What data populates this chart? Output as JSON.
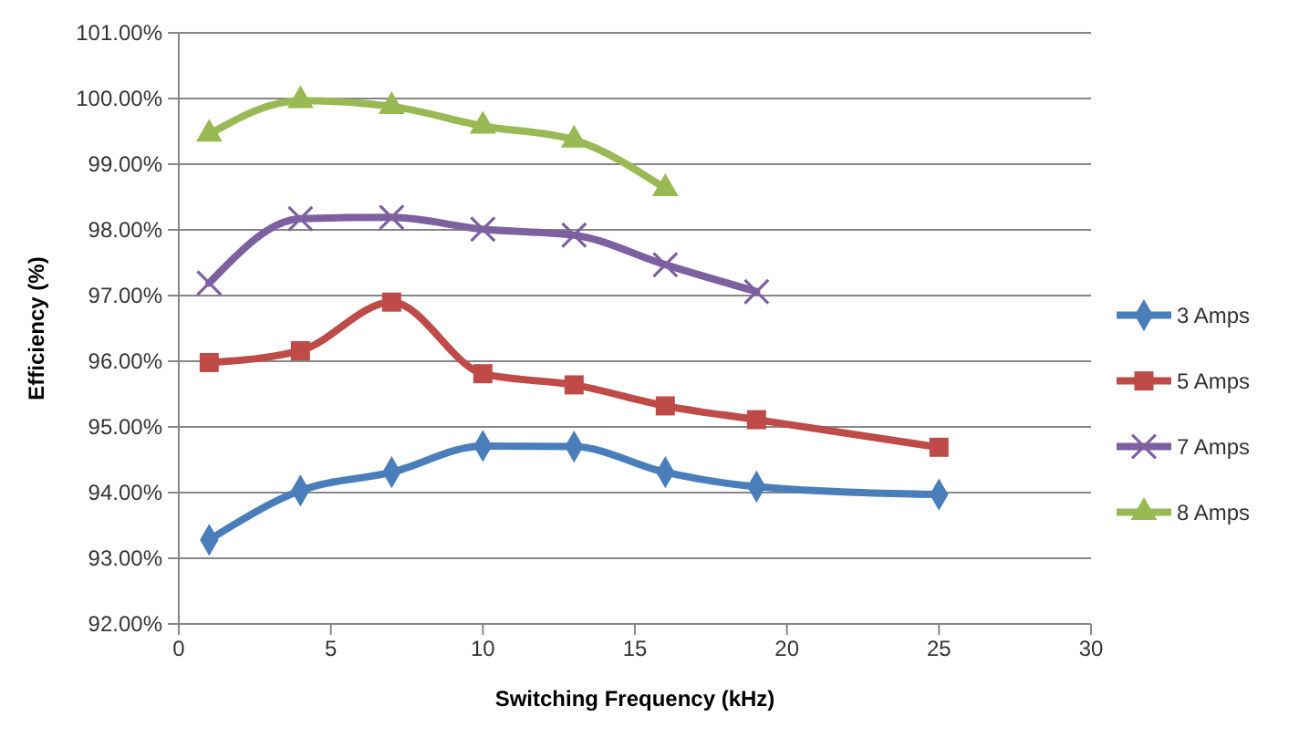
{
  "chart_data": {
    "type": "line",
    "xlabel": "Switching Frequency (kHz)",
    "ylabel": "Efficiency (%)",
    "xlim": [
      0,
      30
    ],
    "xticks": [
      0,
      5,
      10,
      15,
      20,
      25,
      30
    ],
    "ylim": [
      92,
      101
    ],
    "yticks": [
      {
        "value": 92,
        "label": "92.00%"
      },
      {
        "value": 93,
        "label": "93.00%"
      },
      {
        "value": 94,
        "label": "94.00%"
      },
      {
        "value": 95,
        "label": "95.00%"
      },
      {
        "value": 96,
        "label": "96.00%"
      },
      {
        "value": 97,
        "label": "97.00%"
      },
      {
        "value": 98,
        "label": "98.00%"
      },
      {
        "value": 99,
        "label": "99.00%"
      },
      {
        "value": 100,
        "label": "100.00%"
      },
      {
        "value": 101,
        "label": "101.00%"
      }
    ],
    "grid": "y",
    "legend": "right",
    "series": [
      {
        "name": "3 Amps",
        "color": "#4a7ebb",
        "marker": "diamond",
        "x": [
          1,
          4,
          7,
          10,
          13,
          16,
          19,
          25
        ],
        "values": [
          93.28,
          94.03,
          94.31,
          94.71,
          94.7,
          94.31,
          94.09,
          93.97
        ]
      },
      {
        "name": "5 Amps",
        "color": "#be4b48",
        "marker": "square",
        "x": [
          1,
          4,
          7,
          10,
          13,
          16,
          19,
          25
        ],
        "values": [
          95.98,
          96.16,
          96.9,
          95.81,
          95.64,
          95.32,
          95.11,
          94.69
        ]
      },
      {
        "name": "7 Amps",
        "color": "#7d60a0",
        "marker": "cross",
        "x": [
          1,
          4,
          7,
          10,
          13,
          16,
          19
        ],
        "values": [
          97.19,
          98.17,
          98.19,
          98.01,
          97.92,
          97.47,
          97.06
        ]
      },
      {
        "name": "8 Amps",
        "color": "#98b954",
        "marker": "triangle",
        "x": [
          1,
          4,
          7,
          10,
          13,
          16
        ],
        "values": [
          99.46,
          99.97,
          99.88,
          99.58,
          99.37,
          98.63
        ]
      }
    ]
  }
}
